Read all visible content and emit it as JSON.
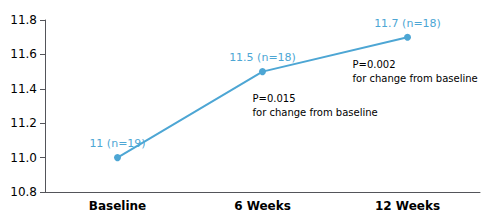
{
  "chart_data": {
    "type": "line",
    "categories": [
      "Baseline",
      "6 Weeks",
      "12 Weeks"
    ],
    "values": [
      11.0,
      11.5,
      11.7
    ],
    "value_labels": [
      "11 (n=19)",
      "11.5 (n=18)",
      "11.7 (n=18)"
    ],
    "data_labels": true,
    "color": "#4da6d4",
    "marker": "circle",
    "ylim": [
      10.8,
      11.8
    ],
    "yticks": [
      10.8,
      {
        "value": 11.0,
        "label": "11.0"
      },
      11.2,
      11.4,
      11.6,
      11.8
    ],
    "grid": false,
    "annotations": [
      "P=0.015\nfor change from baseline",
      "P=0.002\nfor change from baseline"
    ]
  }
}
